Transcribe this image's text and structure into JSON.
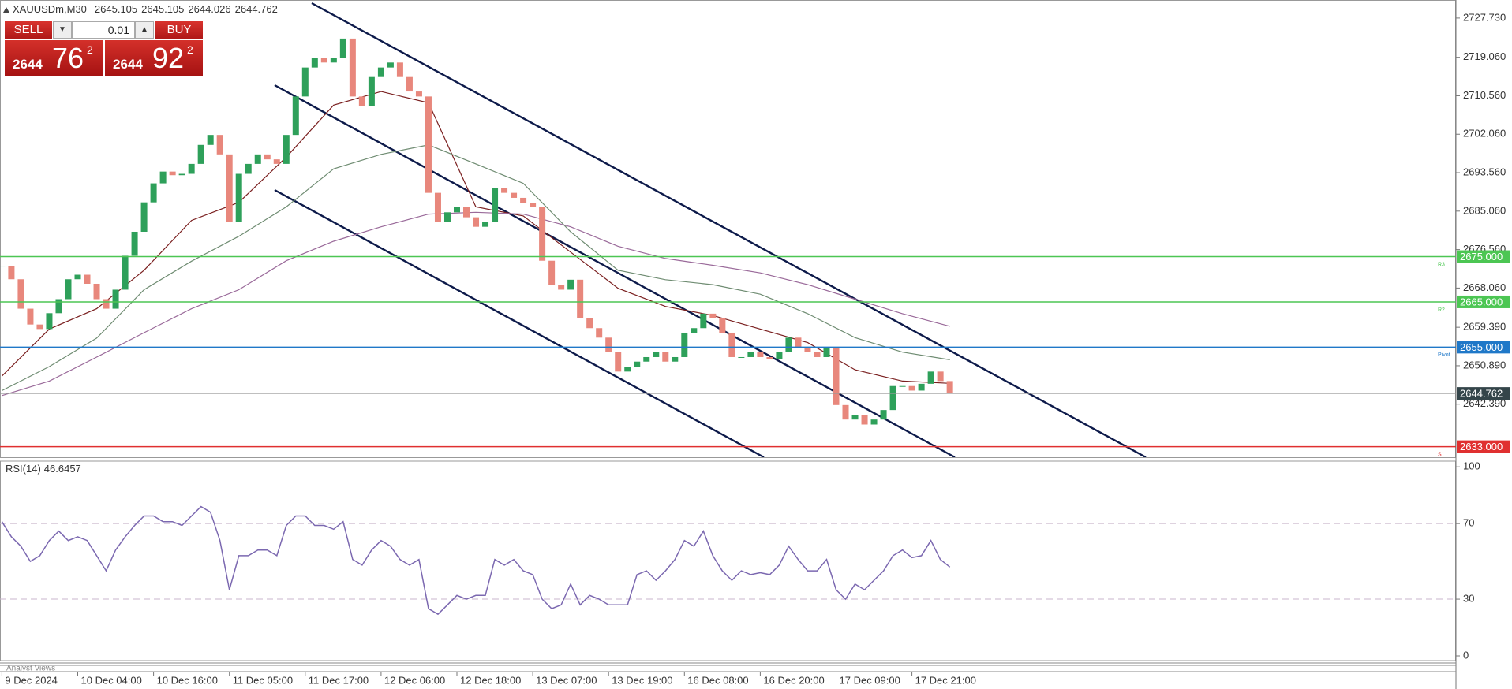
{
  "header": {
    "symbol": "XAUUSDm,M30",
    "ohlc": [
      2645.105,
      2645.105,
      2644.026,
      2644.762
    ]
  },
  "trade_panel": {
    "sell": "SELL",
    "buy": "BUY",
    "lot": 0.01,
    "sell_price": {
      "big": "2644",
      "main": "76",
      "small": "2"
    },
    "buy_price": {
      "big": "2644",
      "main": "92",
      "small": "2"
    }
  },
  "chart_data": [
    {
      "type": "candlestick",
      "up_color": "#2ea05a",
      "down_color": "#e8877c",
      "categories": [
        "9 Dec 2024",
        "10 Dec 04:00",
        "10 Dec 16:00",
        "11 Dec 05:00",
        "11 Dec 17:00",
        "12 Dec 06:00",
        "12 Dec 18:00",
        "13 Dec 07:00",
        "13 Dec 19:00",
        "16 Dec 08:00",
        "16 Dec 20:00",
        "17 Dec 09:00",
        "17 Dec 21:00"
      ],
      "close": [
        2673,
        2670,
        2663.5,
        2660,
        2659,
        2662.5,
        2665.6,
        2670,
        2671,
        2669,
        2665.6,
        2663.5,
        2667.7,
        2675.2,
        2680.5,
        2687,
        2691.2,
        2693.8,
        2693,
        2693.3,
        2695.5,
        2699.7,
        2701.9,
        2697.6,
        2682.7,
        2693.3,
        2695.5,
        2697.6,
        2696.5,
        2695.5,
        2701.9,
        2710.4,
        2716.8,
        2718.9,
        2717.9,
        2718.9,
        2723.2,
        2710.4,
        2708.3,
        2714.7,
        2716.8,
        2717.9,
        2714.7,
        2711.5,
        2710.4,
        2689.1,
        2682.7,
        2684.8,
        2685.9,
        2683.7,
        2681.6,
        2682.7,
        2690.1,
        2689.1,
        2688,
        2686.9,
        2685.9,
        2674.1,
        2668.8,
        2667.7,
        2669.9,
        2661.4,
        2659.2,
        2657.1,
        2653.9,
        2649.6,
        2650.7,
        2651.8,
        2652.8,
        2653.9,
        2651.8,
        2652.8,
        2658.2,
        2659.2,
        2662.4,
        2661.4,
        2658.2,
        2652.8,
        2652.8,
        2653.9,
        2652.8,
        2652.4,
        2653.9,
        2657.1,
        2655,
        2653.9,
        2652.8,
        2655,
        2642.2,
        2639,
        2640,
        2637.9,
        2639,
        2641.1,
        2646.4,
        2646.4,
        2645.4,
        2646.9,
        2649.6,
        2647.5,
        2644.8
      ],
      "ma": [
        {
          "color": "#7a1f1f",
          "values": [
            2648.6,
            2659,
            2663.5,
            2672,
            2683,
            2687,
            2697,
            2708.5,
            2711.5,
            2709,
            2686,
            2684,
            2676,
            2668,
            2664,
            2662,
            2659,
            2656,
            2650,
            2647.5,
            2647
          ]
        },
        {
          "color": "#6f8c72",
          "values": [
            2645.4,
            2650.7,
            2657,
            2667.7,
            2674,
            2679.5,
            2686,
            2694.4,
            2697.6,
            2699.7,
            2695.5,
            2691.2,
            2680.5,
            2672,
            2669.9,
            2668.8,
            2666.7,
            2662.4,
            2657.1,
            2653.9,
            2652.2
          ]
        },
        {
          "color": "#9a6a9a",
          "values": [
            2644.3,
            2647.5,
            2652.8,
            2658.2,
            2663.5,
            2667.7,
            2674.1,
            2678.4,
            2681.6,
            2684.4,
            2684.8,
            2684.4,
            2681.6,
            2677.3,
            2674.6,
            2673.1,
            2671.4,
            2668.8,
            2665.6,
            2662.4,
            2659.6
          ]
        }
      ],
      "ylim": [
        2630.67,
        2731.72
      ],
      "yticks": [
        {
          "value": 2727.73,
          "label": "2727.730"
        },
        {
          "value": 2719.06,
          "label": "2719.060"
        },
        {
          "value": 2710.56,
          "label": "2710.560"
        },
        {
          "value": 2702.06,
          "label": "2702.060"
        },
        {
          "value": 2693.56,
          "label": "2693.560"
        },
        {
          "value": 2685.06,
          "label": "2685.060"
        },
        {
          "value": 2676.56,
          "label": "2676.560"
        },
        {
          "value": 2668.06,
          "label": "2668.060"
        },
        {
          "value": 2659.39,
          "label": "2659.390"
        },
        {
          "value": 2650.89,
          "label": "2650.890"
        },
        {
          "value": 2642.39,
          "label": "2642.390"
        }
      ],
      "levels": [
        {
          "value": 2675,
          "label": "2675.000",
          "tag": "R3",
          "color": "#4cc653"
        },
        {
          "value": 2665,
          "label": "2665.000",
          "tag": "R2",
          "color": "#4cc653"
        },
        {
          "value": 2655,
          "label": "2655.000",
          "tag": "Pivot",
          "color": "#1f78c8"
        },
        {
          "value": 2633,
          "label": "2633.000",
          "tag": "S1",
          "color": "#e03030"
        }
      ],
      "last_price": 2644.762
    },
    {
      "type": "line",
      "title": "RSI(14)",
      "current": 46.6457,
      "color": "#7b68b0",
      "values": [
        71,
        63,
        58,
        50,
        53,
        61,
        66,
        61,
        63,
        61,
        53,
        45,
        56,
        63,
        69,
        74,
        74,
        71,
        71,
        69,
        74,
        79,
        76,
        61,
        35,
        53,
        53,
        56,
        56,
        53,
        69,
        74,
        74,
        69,
        69,
        67,
        71,
        51,
        48,
        56,
        61,
        58,
        51,
        48,
        51,
        25,
        22,
        27,
        32,
        30,
        32,
        32,
        51,
        48,
        51,
        45,
        43,
        30,
        25,
        27,
        38,
        27,
        32,
        30,
        27,
        27,
        27,
        43,
        45,
        40,
        45,
        51,
        61,
        58,
        66,
        53,
        45,
        40,
        45,
        43,
        44,
        43,
        48,
        58,
        51,
        45,
        45,
        51,
        35,
        30,
        38,
        35,
        40,
        45,
        53,
        56,
        52,
        53,
        61,
        51,
        47
      ],
      "ylim": [
        -2.5,
        103
      ],
      "yticks": [
        100,
        70,
        30,
        0
      ],
      "levels": [
        70,
        30
      ]
    }
  ],
  "tab": "Analyst Views"
}
